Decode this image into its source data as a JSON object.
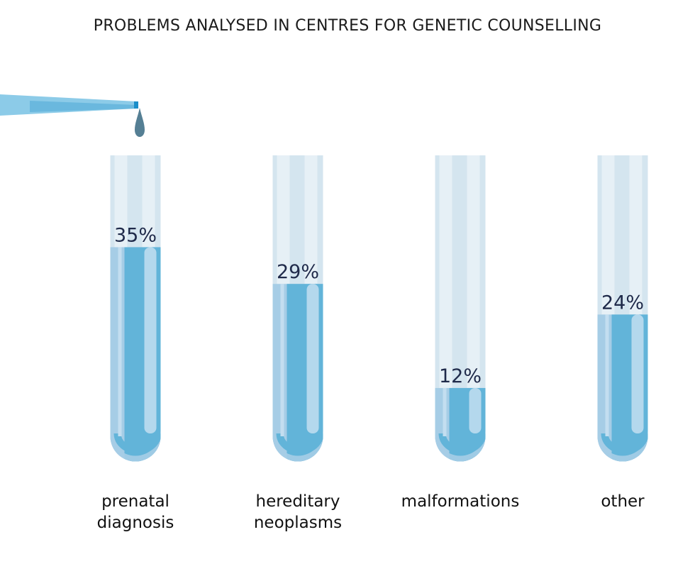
{
  "colors": {
    "tube_glass": "#d4e5ef",
    "tube_glass_light": "#e6f0f6",
    "tube_highlight": "#eef5f9",
    "liquid_light": "#a6cde6",
    "liquid_mid": "#62b4d9",
    "liquid_highlight": "#c3def0",
    "pipette_light": "#8ccbe8",
    "pipette_dark": "#4fa9d6",
    "drop": "#557f94",
    "label_text": "#1f2a4a"
  },
  "chart_data": {
    "type": "bar",
    "title": "PROBLEMS ANALYSED IN CENTRES FOR GENETIC COUNSELLING",
    "categories": [
      [
        "prenatal",
        "diagnosis"
      ],
      [
        "hereditary",
        "neoplasms"
      ],
      [
        "malformations"
      ],
      [
        "other"
      ]
    ],
    "values": [
      35,
      29,
      12,
      24
    ],
    "value_labels": [
      "35%",
      "29%",
      "12%",
      "24%"
    ],
    "unit": "%",
    "ylim": [
      0,
      50
    ],
    "xlabel": "",
    "ylabel": "",
    "grid": false,
    "legend": "none"
  }
}
